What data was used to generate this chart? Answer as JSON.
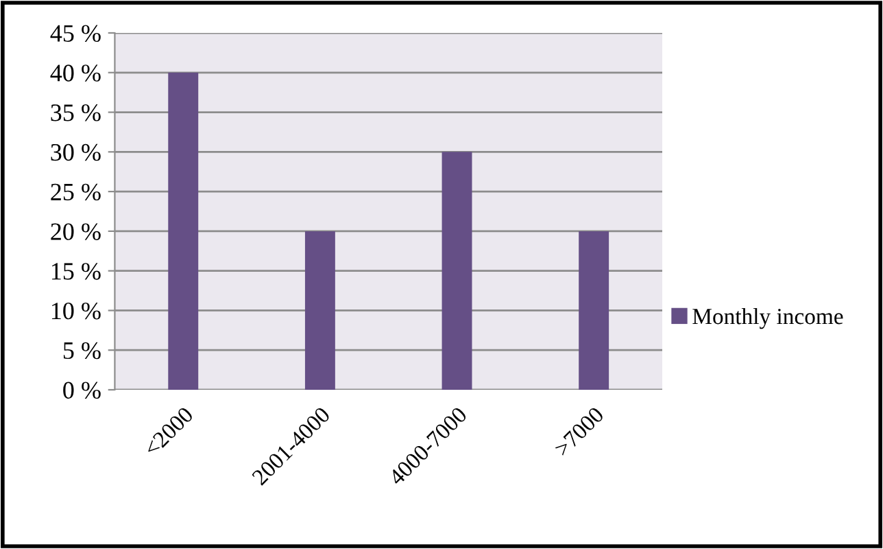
{
  "chart_data": {
    "type": "bar",
    "categories": [
      "<2000",
      "2001-4000",
      "4000-7000",
      ">7000"
    ],
    "series": [
      {
        "name": "Monthly income",
        "color": "#654f86",
        "values": [
          40,
          20,
          30,
          20
        ]
      }
    ],
    "ylim": [
      0,
      45
    ],
    "yticks": [
      {
        "value": 0,
        "label": "0 %"
      },
      {
        "value": 5,
        "label": "5 %"
      },
      {
        "value": 10,
        "label": "10 %"
      },
      {
        "value": 15,
        "label": "15 %"
      },
      {
        "value": 20,
        "label": "20 %"
      },
      {
        "value": 25,
        "label": "25 %"
      },
      {
        "value": 30,
        "label": "30 %"
      },
      {
        "value": 35,
        "label": "35 %"
      },
      {
        "value": 40,
        "label": "40 %"
      },
      {
        "value": 45,
        "label": "45 %"
      }
    ],
    "grid": "y",
    "legend": "right"
  }
}
